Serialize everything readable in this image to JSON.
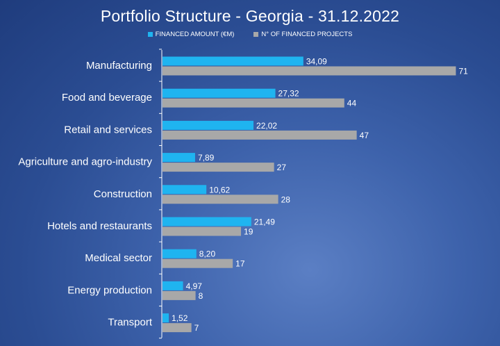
{
  "colors": {
    "amount": "#1fb4f0",
    "projects": "#a8a8a8",
    "axis": "#ffffff",
    "text": "#ffffff"
  },
  "chart_data": {
    "type": "bar",
    "orientation": "horizontal",
    "title": "Portfolio Structure - Georgia - 31.12.2022",
    "legend_placement": "top",
    "categories": [
      "Manufacturing",
      "Food and beverage",
      "Retail and services",
      "Agriculture and agro-industry",
      "Construction",
      "Hotels and restaurants",
      "Medical sector",
      "Energy production",
      "Transport"
    ],
    "series": [
      {
        "name": "FINANCED AMOUNT (€M)",
        "values": [
          34.09,
          27.32,
          22.02,
          7.89,
          10.62,
          21.49,
          8.2,
          4.97,
          1.52
        ],
        "labels": [
          "34,09",
          "27,32",
          "22,02",
          "7,89",
          "10,62",
          "21,49",
          "8,20",
          "4,97",
          "1,52"
        ]
      },
      {
        "name": "N° OF FINANCED PROJECTS",
        "values": [
          71,
          44,
          47,
          27,
          28,
          19,
          17,
          8,
          7
        ],
        "labels": [
          "71",
          "44",
          "47",
          "27",
          "28",
          "19",
          "17",
          "8",
          "7"
        ]
      }
    ],
    "xlim": [
      0,
      80
    ],
    "grid": false
  }
}
